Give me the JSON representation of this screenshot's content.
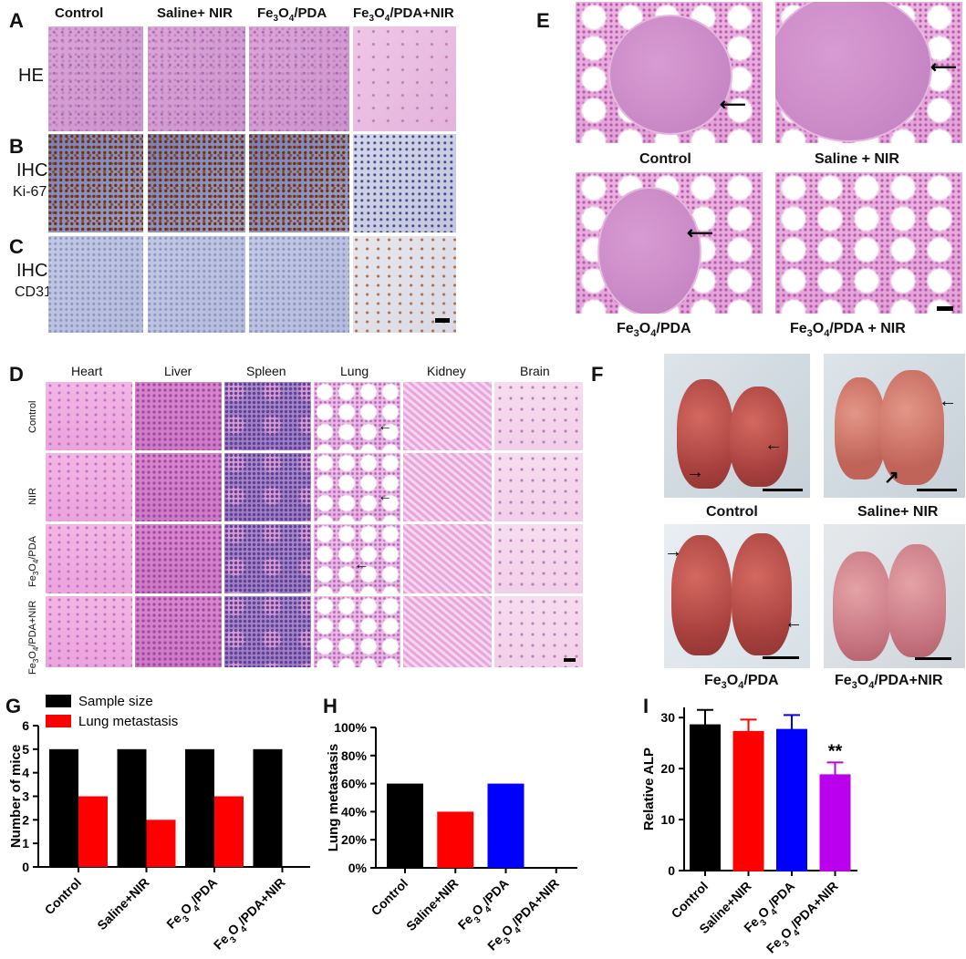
{
  "panels": {
    "A": "A",
    "B": "B",
    "C": "C",
    "D": "D",
    "E": "E",
    "F": "F",
    "G": "G",
    "H": "H",
    "I": "I"
  },
  "abc": {
    "col_headers": [
      "Control",
      "Saline+ NIR",
      "Fe3O4/PDA",
      "Fe3O4/PDA+NIR"
    ],
    "row_labels": {
      "he": "HE",
      "ihc": "IHC",
      "ki67": "Ki-67",
      "cd31": "CD31"
    }
  },
  "d": {
    "col_headers": [
      "Heart",
      "Liver",
      "Spleen",
      "Lung",
      "Kidney",
      "Brain"
    ],
    "row_labels": [
      "Control",
      "NIR",
      "Fe3O4/PDA",
      "Fe3O4/PDA+NIR"
    ]
  },
  "e": {
    "captions": [
      "Control",
      "Saline + NIR",
      "Fe3O4/PDA",
      "Fe3O4/PDA + NIR"
    ]
  },
  "f": {
    "captions": [
      "Control",
      "Saline+ NIR",
      "Fe3O4/PDA",
      "Fe3O4/PDA+NIR"
    ]
  },
  "colors": {
    "black": "#000000",
    "red": "#ff0000",
    "blue": "#0000ff",
    "purple": "#bb00ee"
  },
  "chart_data": [
    {
      "type": "bar",
      "categories": [
        "Control",
        "Saline+NIR",
        "Fe3O4/PDA",
        "Fe3O4/PDA+NIR"
      ],
      "series": [
        {
          "name": "Sample size",
          "values": [
            5,
            5,
            5,
            5
          ]
        },
        {
          "name": "Lung metastasis",
          "values": [
            3,
            2,
            3,
            0
          ]
        }
      ],
      "xlabel": "",
      "ylabel": "Number of mice",
      "ylim": [
        0,
        6
      ],
      "yticks": [
        "0",
        "1",
        "2",
        "3",
        "4",
        "5",
        "6"
      ],
      "legend": "top-left"
    },
    {
      "type": "bar",
      "categories": [
        "Control",
        "Saline+NIR",
        "Fe3O4/PDA",
        "Fe3O4/PDA+NIR"
      ],
      "values": [
        60,
        40,
        60,
        0
      ],
      "xlabel": "",
      "ylabel": "Lung metastasis",
      "ylim": [
        0,
        100
      ],
      "yticks": [
        "0%",
        "20%",
        "40%",
        "60%",
        "80%",
        "100%"
      ]
    },
    {
      "type": "bar",
      "categories": [
        "Control",
        "Saline+NIR",
        "Fe3O4/PDA",
        "Fe3O4/PDA+NIR"
      ],
      "values": [
        28.5,
        27.2,
        27.6,
        18.7
      ],
      "errors": [
        3.0,
        2.4,
        2.9,
        2.5
      ],
      "annotations": [
        "",
        "",
        "",
        "**"
      ],
      "xlabel": "",
      "ylabel": "Relative ALP",
      "ylim": [
        0,
        32
      ],
      "yticks": [
        "0",
        "10",
        "20",
        "30"
      ]
    }
  ]
}
